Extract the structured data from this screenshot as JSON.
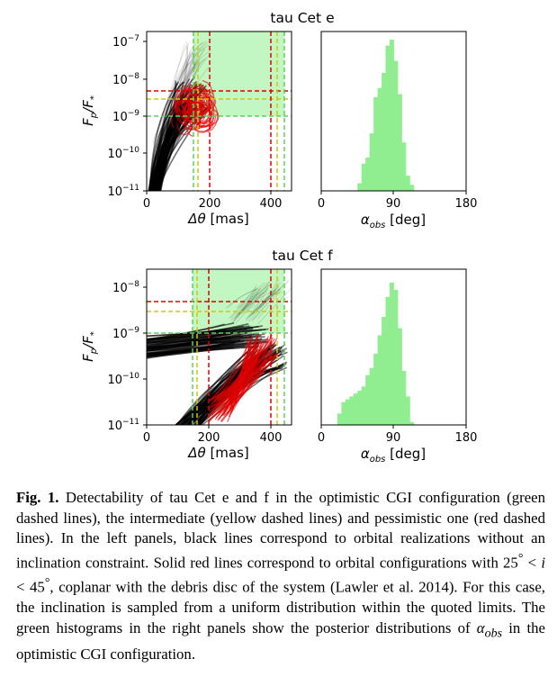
{
  "figure": {
    "panels": [
      {
        "title": "tau Cet e",
        "left": {
          "ylabel_main": "F",
          "ylabel_sub_p": "p",
          "ylabel_sep": "/F",
          "ylabel_sub_star": "*",
          "xlabel_delta": "Δθ",
          "xlabel_unit": " [mas]",
          "xticks": [
            "0",
            "200",
            "400"
          ],
          "yticks": [
            {
              "base": "10",
              "exp": "−7"
            },
            {
              "base": "10",
              "exp": "−8"
            },
            {
              "base": "10",
              "exp": "−9"
            },
            {
              "base": "10",
              "exp": "−10"
            },
            {
              "base": "10",
              "exp": "−11"
            }
          ]
        },
        "right": {
          "xlabel_alpha": "α",
          "xlabel_sub": "obs",
          "xlabel_unit": " [deg]",
          "xticks": [
            "0",
            "90",
            "180"
          ]
        }
      },
      {
        "title": "tau Cet f",
        "left": {
          "ylabel_main": "F",
          "ylabel_sub_p": "p",
          "ylabel_sep": "/F",
          "ylabel_sub_star": "*",
          "xlabel_delta": "Δθ",
          "xlabel_unit": " [mas]",
          "xticks": [
            "0",
            "200",
            "400"
          ],
          "yticks": [
            {
              "base": "10",
              "exp": "−8"
            },
            {
              "base": "10",
              "exp": "−9"
            },
            {
              "base": "10",
              "exp": "−10"
            },
            {
              "base": "10",
              "exp": "−11"
            }
          ]
        },
        "right": {
          "xlabel_alpha": "α",
          "xlabel_sub": "obs",
          "xlabel_unit": " [deg]",
          "xticks": [
            "0",
            "90",
            "180"
          ]
        }
      }
    ]
  },
  "chart_data": [
    {
      "type": "histogram",
      "title": "tau Cet e",
      "xlim": [
        0,
        180
      ],
      "bins": [
        {
          "x0": 45,
          "x1": 50,
          "h": 0.05
        },
        {
          "x0": 50,
          "x1": 55,
          "h": 0.18
        },
        {
          "x0": 55,
          "x1": 60,
          "h": 0.22
        },
        {
          "x0": 60,
          "x1": 65,
          "h": 0.38
        },
        {
          "x0": 65,
          "x1": 70,
          "h": 0.62
        },
        {
          "x0": 70,
          "x1": 75,
          "h": 0.68
        },
        {
          "x0": 75,
          "x1": 80,
          "h": 0.78
        },
        {
          "x0": 80,
          "x1": 85,
          "h": 0.96
        },
        {
          "x0": 85,
          "x1": 90,
          "h": 1.0
        },
        {
          "x0": 90,
          "x1": 95,
          "h": 0.86
        },
        {
          "x0": 95,
          "x1": 100,
          "h": 0.64
        },
        {
          "x0": 100,
          "x1": 105,
          "h": 0.32
        },
        {
          "x0": 105,
          "x1": 110,
          "h": 0.1
        },
        {
          "x0": 110,
          "x1": 115,
          "h": 0.04
        }
      ],
      "color": "#90ee90"
    },
    {
      "type": "histogram",
      "title": "tau Cet f",
      "xlim": [
        0,
        180
      ],
      "bins": [
        {
          "x0": 20,
          "x1": 25,
          "h": 0.08
        },
        {
          "x0": 25,
          "x1": 30,
          "h": 0.16
        },
        {
          "x0": 30,
          "x1": 35,
          "h": 0.18
        },
        {
          "x0": 35,
          "x1": 40,
          "h": 0.2
        },
        {
          "x0": 40,
          "x1": 45,
          "h": 0.22
        },
        {
          "x0": 45,
          "x1": 50,
          "h": 0.24
        },
        {
          "x0": 50,
          "x1": 55,
          "h": 0.27
        },
        {
          "x0": 55,
          "x1": 60,
          "h": 0.35
        },
        {
          "x0": 60,
          "x1": 65,
          "h": 0.4
        },
        {
          "x0": 65,
          "x1": 70,
          "h": 0.5
        },
        {
          "x0": 70,
          "x1": 75,
          "h": 0.63
        },
        {
          "x0": 75,
          "x1": 80,
          "h": 0.76
        },
        {
          "x0": 80,
          "x1": 85,
          "h": 0.9
        },
        {
          "x0": 85,
          "x1": 90,
          "h": 1.0
        },
        {
          "x0": 90,
          "x1": 95,
          "h": 0.95
        },
        {
          "x0": 95,
          "x1": 100,
          "h": 0.68
        },
        {
          "x0": 100,
          "x1": 105,
          "h": 0.38
        },
        {
          "x0": 105,
          "x1": 110,
          "h": 0.2
        },
        {
          "x0": 110,
          "x1": 115,
          "h": 0.02
        }
      ],
      "color": "#90ee90"
    },
    {
      "type": "scatter",
      "title": "tau Cet e",
      "xlim": [
        0,
        460
      ],
      "ylim": [
        1e-11,
        1.4e-07
      ],
      "yscale": "log",
      "vlines": [
        {
          "x": 150,
          "color": "#5bd25b"
        },
        {
          "x": 163,
          "color": "#d2c800"
        },
        {
          "x": 200,
          "color": "#e00000"
        },
        {
          "x": 400,
          "color": "#e00000"
        },
        {
          "x": 420,
          "color": "#d2c800"
        },
        {
          "x": 440,
          "color": "#5bd25b"
        }
      ],
      "hlines": [
        {
          "y": 5e-09,
          "color": "#e00000"
        },
        {
          "y": 3e-09,
          "color": "#d2c800"
        },
        {
          "y": 1e-09,
          "color": "#5bd25b"
        }
      ],
      "shaded": {
        "xmin": 150,
        "xmax": 440,
        "ymin": 1e-09
      }
    },
    {
      "type": "scatter",
      "title": "tau Cet f",
      "xlim": [
        0,
        460
      ],
      "ylim": [
        1e-11,
        2.4e-08
      ],
      "yscale": "log",
      "vlines": [
        {
          "x": 150,
          "color": "#5bd25b"
        },
        {
          "x": 163,
          "color": "#d2c800"
        },
        {
          "x": 200,
          "color": "#e00000"
        },
        {
          "x": 400,
          "color": "#e00000"
        },
        {
          "x": 420,
          "color": "#d2c800"
        },
        {
          "x": 440,
          "color": "#5bd25b"
        }
      ],
      "hlines": [
        {
          "y": 5e-09,
          "color": "#e00000"
        },
        {
          "y": 3e-09,
          "color": "#d2c800"
        },
        {
          "y": 1e-09,
          "color": "#5bd25b"
        }
      ],
      "shaded": {
        "xmin": 150,
        "xmax": 440,
        "ymin": 1e-09
      }
    }
  ],
  "caption": {
    "label": "Fig. 1.",
    "p1": "  Detectability of tau Cet e and f in the optimistic CGI configuration (green dashed lines), the intermediate (yellow dashed lines) and pessimistic one (red dashed lines). In the left panels, black lines correspond to orbital realizations without an inclination constraint. Solid red lines correspond to orbital configurations with 25",
    "deg1": "°",
    "lt1": " < ",
    "ivar": "i",
    "lt2": " < 45",
    "deg2": "°",
    "p2": ", coplanar with the debris disc of the system (Lawler et al. 2014). For this case, the inclination is sampled from a uniform distribution within the quoted limits. The green histograms in the right panels show the posterior distributions of ",
    "alpha": "α",
    "alpha_sub": "obs",
    "p3": " in the optimistic CGI configuration."
  }
}
